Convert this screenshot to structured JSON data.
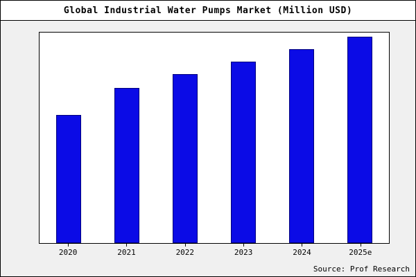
{
  "page": {
    "title": "Global Industrial Water Pumps Market (Million USD)",
    "source": "Source: Prof Research"
  },
  "chart_data": {
    "type": "bar",
    "title": "Global Industrial Water Pumps Market (Million USD)",
    "categories": [
      "2020",
      "2021",
      "2022",
      "2023",
      "2024",
      "2025e"
    ],
    "values": [
      62,
      75,
      82,
      88,
      94,
      100
    ],
    "ylim": [
      0,
      100
    ],
    "xlabel": "",
    "ylabel": "",
    "grid": false,
    "legend": false,
    "annotation": "Source: Prof Research",
    "colors": {
      "bar_fill": "#0b0be6",
      "bar_edge": "#00007a",
      "plot_bg": "#ffffff",
      "page_bg": "#f0f0f0",
      "border": "#000000"
    }
  }
}
